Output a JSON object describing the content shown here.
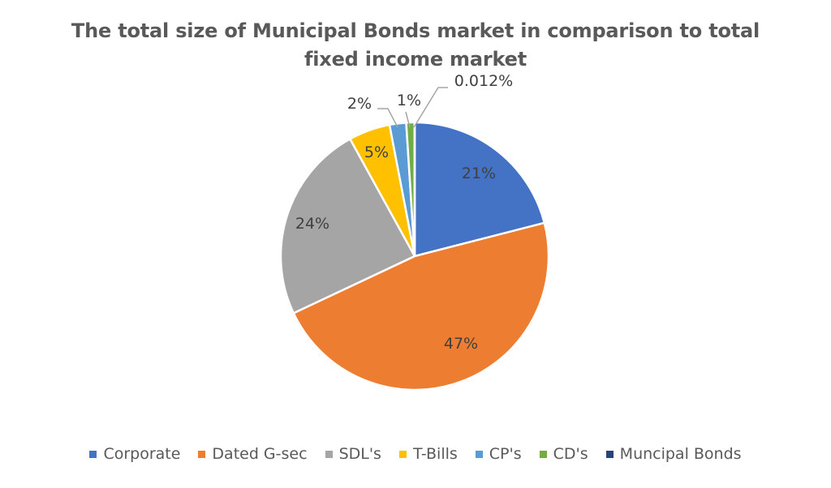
{
  "chart_data": {
    "type": "pie",
    "title_lines": [
      "The total size of Municipal Bonds market in comparison to total",
      "fixed income market"
    ],
    "categories": [
      "Corporate",
      "Dated G-sec",
      "SDL's",
      "T-Bills",
      "CP's",
      "CD's",
      "Muncipal Bonds"
    ],
    "values": [
      21,
      47,
      24,
      5,
      2,
      1,
      0.012
    ],
    "data_labels": [
      "21%",
      "47%",
      "24%",
      "5%",
      "2%",
      "1%",
      "0.012%"
    ],
    "colors": [
      "#4472C4",
      "#ED7D31",
      "#A5A5A5",
      "#FFC000",
      "#5B9BD5",
      "#70AD47",
      "#264478"
    ],
    "legend_position": "bottom"
  }
}
